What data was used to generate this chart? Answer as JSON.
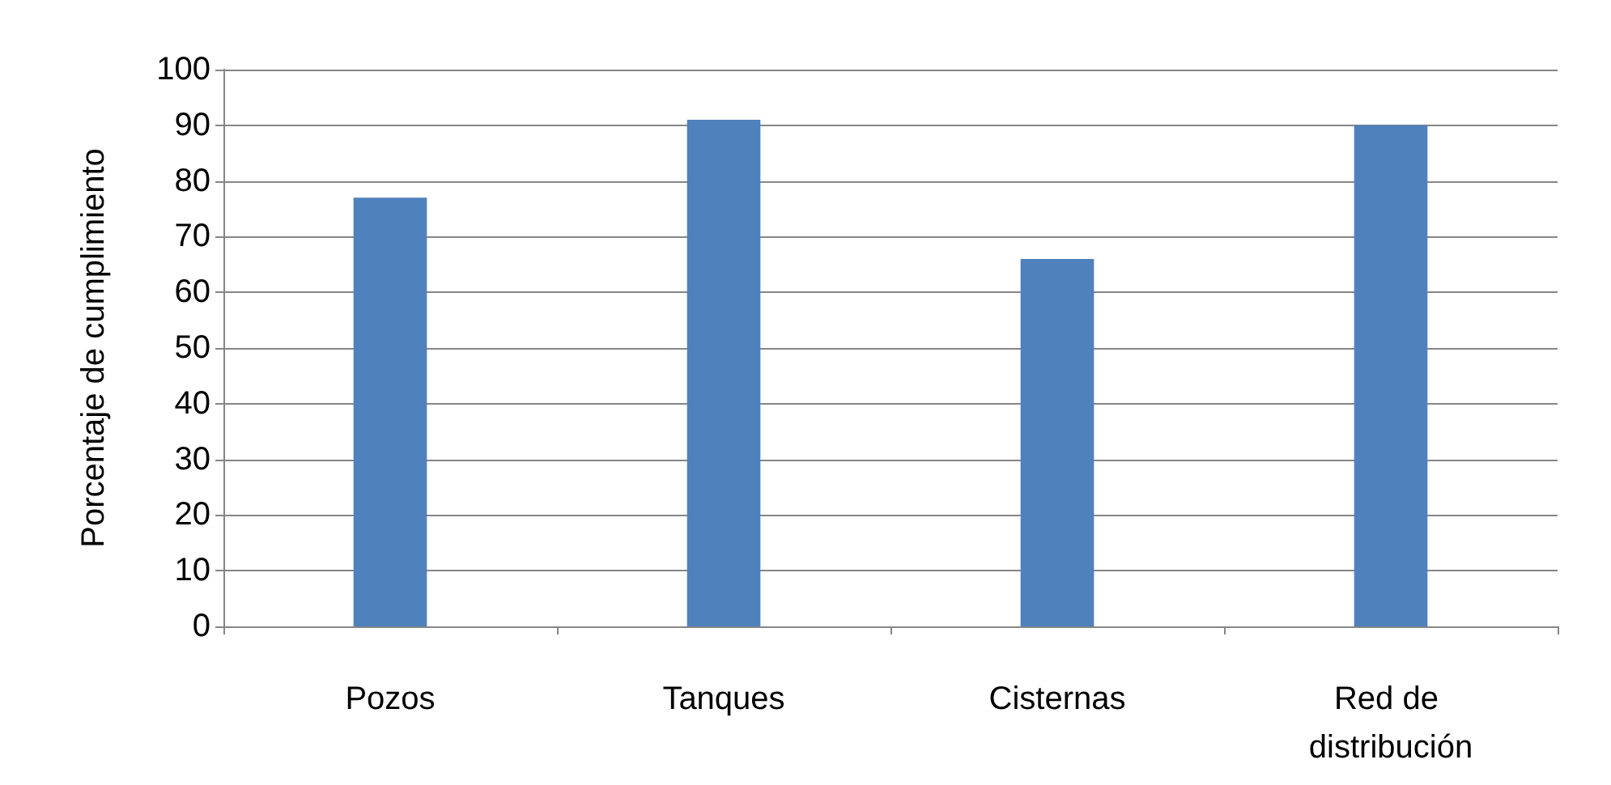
{
  "chart_data": {
    "type": "bar",
    "ylabel": "Porcentaje de cumplimiento",
    "categories": [
      "Pozos",
      "Tanques",
      "Cisternas",
      "Red de distribución"
    ],
    "values": [
      77,
      91,
      66,
      90
    ],
    "color": "#4f81bd",
    "ylim": [
      0,
      100
    ],
    "yticks": [
      0,
      10,
      20,
      30,
      40,
      50,
      60,
      70,
      80,
      90,
      100
    ],
    "grid": "y"
  }
}
